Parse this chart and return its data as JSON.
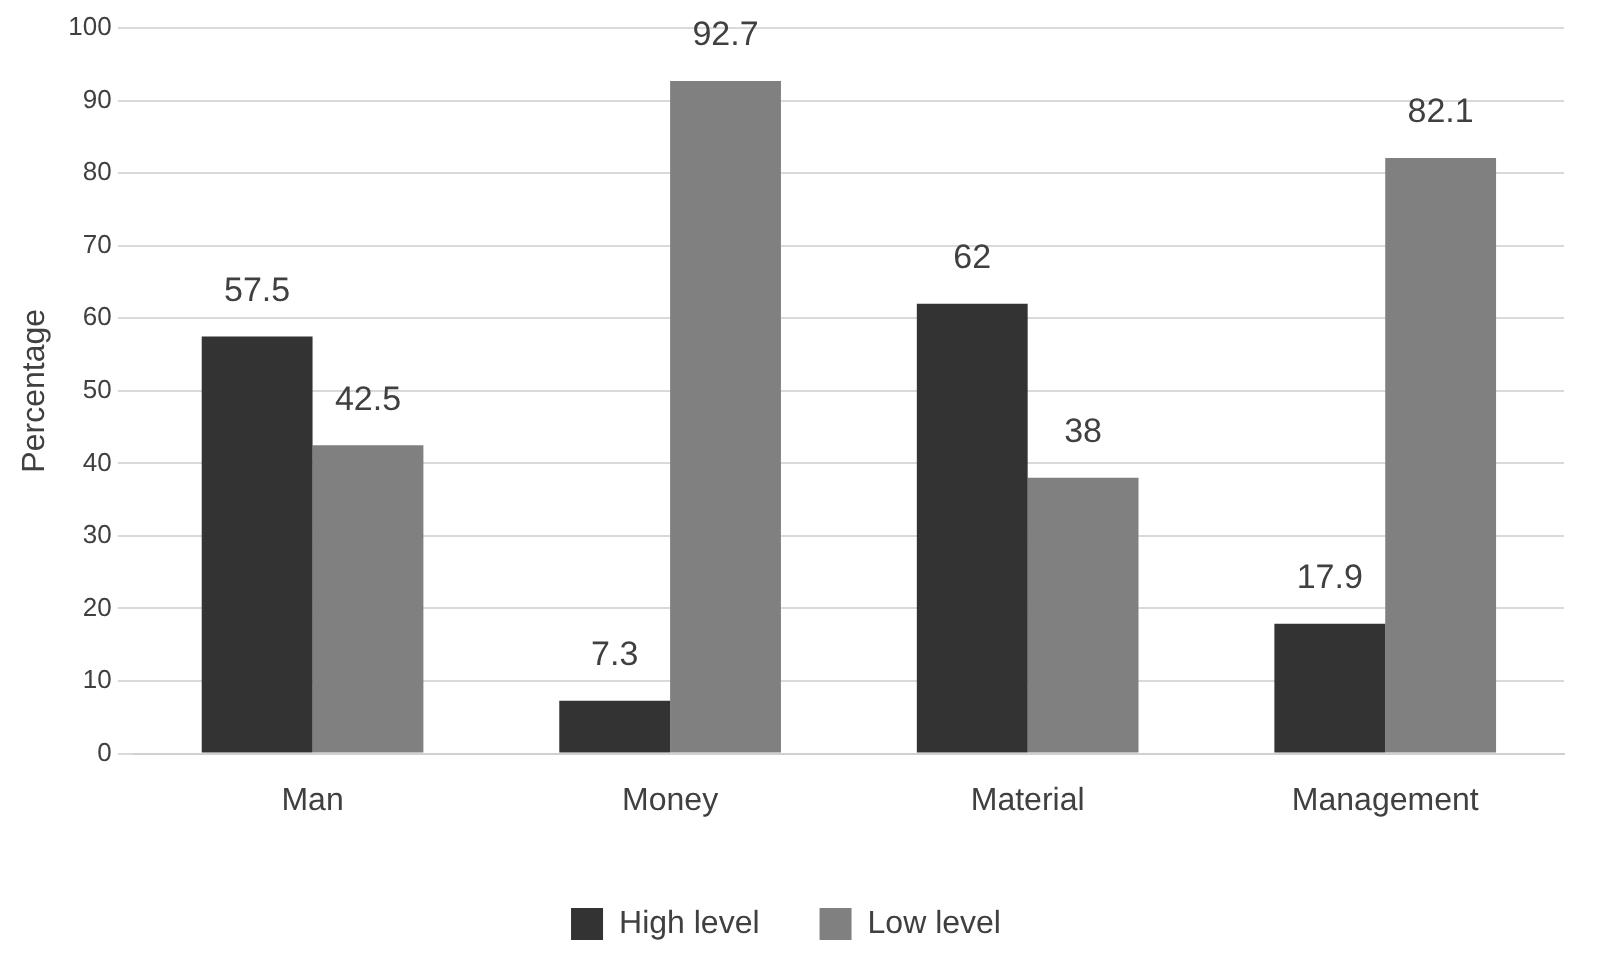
{
  "chart_data": {
    "type": "bar",
    "ylabel": "Percentage",
    "categories": [
      "Man",
      "Money",
      "Material",
      "Management"
    ],
    "series": [
      {
        "name": "High level",
        "color": "#333333",
        "values": [
          57.5,
          7.3,
          62,
          17.9
        ]
      },
      {
        "name": "Low level",
        "color": "#808080",
        "values": [
          42.5,
          92.7,
          38,
          82.1
        ]
      }
    ],
    "ylim": [
      0,
      100
    ],
    "yticks": [
      0,
      10,
      20,
      30,
      40,
      50,
      60,
      70,
      80,
      90,
      100
    ],
    "grid": "y",
    "legend": "bottom",
    "data_labels": true
  }
}
